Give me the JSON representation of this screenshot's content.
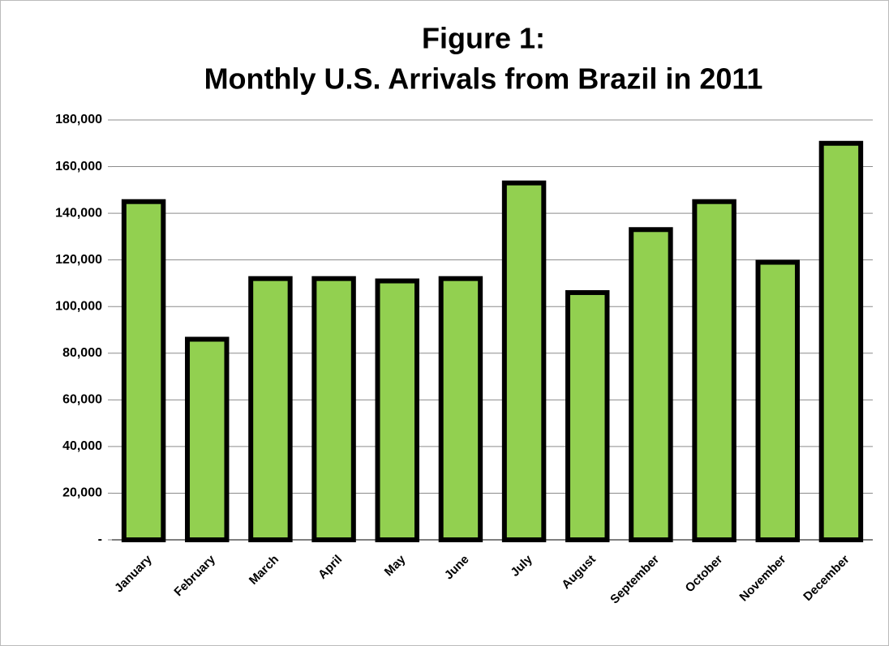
{
  "chart_data": {
    "type": "bar",
    "title": [
      "Figure 1:",
      "Monthly U.S. Arrivals from Brazil in 2011"
    ],
    "categories": [
      "January",
      "February",
      "March",
      "April",
      "May",
      "June",
      "July",
      "August",
      "September",
      "October",
      "November",
      "December"
    ],
    "values": [
      145000,
      86000,
      112000,
      112000,
      111000,
      112000,
      153000,
      106000,
      133000,
      145000,
      119000,
      170000
    ],
    "color": "#92d050",
    "ylim": [
      0,
      180000
    ],
    "yticks": [
      {
        "value": 0,
        "label": "-"
      },
      {
        "value": 20000,
        "label": "20,000"
      },
      {
        "value": 40000,
        "label": "40,000"
      },
      {
        "value": 60000,
        "label": "60,000"
      },
      {
        "value": 80000,
        "label": "80,000"
      },
      {
        "value": 100000,
        "label": "100,000"
      },
      {
        "value": 120000,
        "label": "120,000"
      },
      {
        "value": 140000,
        "label": "140,000"
      },
      {
        "value": 160000,
        "label": "160,000"
      },
      {
        "value": 180000,
        "label": "180,000"
      }
    ],
    "grid": true
  }
}
